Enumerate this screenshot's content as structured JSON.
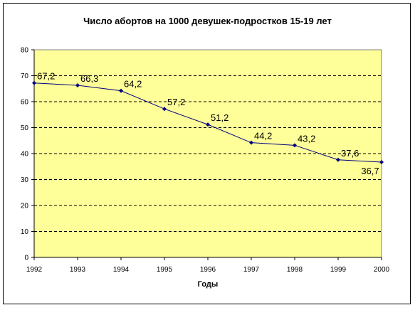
{
  "chart_data": {
    "type": "line",
    "title": "Число абортов на 1000 девушек-подростков 15-19 лет",
    "xlabel": "Годы",
    "ylabel": "",
    "x": [
      "1992",
      "1993",
      "1994",
      "1995",
      "1996",
      "1997",
      "1998",
      "1999",
      "2000"
    ],
    "series": [
      {
        "values": [
          67.2,
          66.3,
          64.2,
          57.2,
          51.2,
          44.2,
          43.2,
          37.6,
          36.7
        ],
        "labels": [
          "67,2",
          "66,3",
          "64,2",
          "57,2",
          "51,2",
          "44,2",
          "43,2",
          "37,6",
          "36,7"
        ]
      }
    ],
    "ylim": [
      0,
      80
    ],
    "yticks": [
      0,
      10,
      20,
      30,
      40,
      50,
      60,
      70,
      80
    ],
    "grid": "horizontal dashed",
    "legend": "none",
    "colors": {
      "plot_background": "#ffff99",
      "line": "#000080",
      "marker": "#000080",
      "grid": "#000000"
    }
  }
}
